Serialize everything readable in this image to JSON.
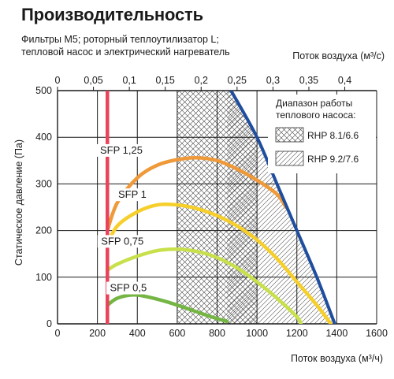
{
  "title": "Производительность",
  "subtitle_line1": "Фильтры M5; роторный теплоутилизатор L;",
  "subtitle_line2": "тепловой насос и электрический нагреватель",
  "chart_data": {
    "type": "line",
    "xlabel": "Поток воздуха (м³/ч)",
    "x2label": "Поток воздуха (м³/с)",
    "ylabel": "Статическое давление (Па)",
    "xlim": [
      0,
      1600
    ],
    "ylim": [
      0,
      500
    ],
    "x2lim": [
      0,
      0.4444
    ],
    "x_ticks": [
      "0",
      "200",
      "400",
      "600",
      "800",
      "1000",
      "1200",
      "1400",
      "1600"
    ],
    "x2_ticks": [
      "0",
      "0,05",
      "0,1",
      "0,15",
      "0,2",
      "0,25",
      "0,3",
      "0,35",
      "0,4"
    ],
    "y_ticks": [
      "0",
      "100",
      "200",
      "300",
      "400",
      "500"
    ],
    "grid": true,
    "min_flow_line": {
      "x": 250,
      "color": "#e8435a"
    },
    "max_curve": {
      "color": "#1f4e9e",
      "points": [
        [
          870,
          500
        ],
        [
          1000,
          400
        ],
        [
          1100,
          300
        ],
        [
          1200,
          200
        ],
        [
          1300,
          100
        ],
        [
          1390,
          0
        ]
      ]
    },
    "series": [
      {
        "name": "SFP 1,25",
        "color": "#ef9a3a",
        "points": [
          [
            250,
            200
          ],
          [
            300,
            260
          ],
          [
            400,
            313
          ],
          [
            500,
            340
          ],
          [
            600,
            352
          ],
          [
            700,
            356
          ],
          [
            800,
            350
          ],
          [
            900,
            332
          ],
          [
            1000,
            308
          ],
          [
            1100,
            278
          ],
          [
            1145,
            250
          ]
        ]
      },
      {
        "name": "SFP 1",
        "color": "#f6cf2b",
        "points": [
          [
            250,
            170
          ],
          [
            300,
            210
          ],
          [
            400,
            240
          ],
          [
            500,
            255
          ],
          [
            600,
            255
          ],
          [
            700,
            247
          ],
          [
            800,
            232
          ],
          [
            900,
            210
          ],
          [
            1000,
            180
          ],
          [
            1100,
            140
          ],
          [
            1200,
            90
          ],
          [
            1300,
            40
          ],
          [
            1370,
            0
          ]
        ]
      },
      {
        "name": "SFP 0,75",
        "color": "#c9e04d",
        "points": [
          [
            250,
            115
          ],
          [
            300,
            128
          ],
          [
            400,
            145
          ],
          [
            500,
            157
          ],
          [
            600,
            160
          ],
          [
            700,
            155
          ],
          [
            800,
            142
          ],
          [
            900,
            120
          ],
          [
            1000,
            90
          ],
          [
            1100,
            55
          ],
          [
            1200,
            15
          ],
          [
            1220,
            0
          ]
        ]
      },
      {
        "name": "SFP 0,5",
        "color": "#74b544",
        "points": [
          [
            250,
            40
          ],
          [
            300,
            55
          ],
          [
            380,
            62
          ],
          [
            450,
            58
          ],
          [
            550,
            47
          ],
          [
            650,
            33
          ],
          [
            750,
            18
          ],
          [
            850,
            5
          ]
        ]
      }
    ],
    "hatch_regions": [
      {
        "name": "RHP 8.1/6.6",
        "pattern": "cross",
        "x_from": 600,
        "x_to": 1000
      },
      {
        "name": "RHP 9.2/7.6",
        "pattern": "diagonal",
        "x_from": 850,
        "x_to": 1390
      }
    ]
  },
  "legend": {
    "title_line1": "Диапазон работы",
    "title_line2": "теплового насоса:",
    "items": [
      {
        "label": "RHP 8.1/6.6",
        "pattern": "cross"
      },
      {
        "label": "RHP 9.2/7.6",
        "pattern": "diagonal"
      }
    ]
  }
}
